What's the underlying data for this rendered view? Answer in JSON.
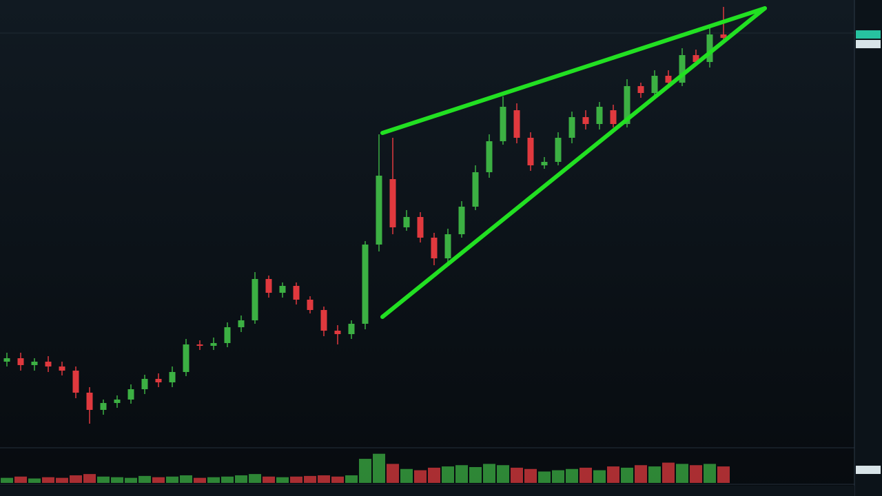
{
  "chart_data": {
    "type": "candlestick",
    "ylim": [
      0,
      650
    ],
    "up_color": "#3cb043",
    "down_color": "#e0393e",
    "open": [
      125,
      130,
      120,
      125,
      118,
      112,
      80,
      55,
      65,
      70,
      85,
      100,
      95,
      110,
      150,
      148,
      152,
      175,
      185,
      245,
      225,
      235,
      215,
      200,
      170,
      165,
      180,
      295,
      390,
      320,
      335,
      305,
      275,
      310,
      350,
      400,
      445,
      490,
      450,
      410,
      415,
      450,
      480,
      470,
      490,
      470,
      525,
      515,
      540,
      530,
      570,
      560,
      600
    ],
    "high": [
      138,
      138,
      130,
      133,
      125,
      118,
      88,
      70,
      76,
      92,
      106,
      108,
      118,
      158,
      156,
      160,
      182,
      192,
      255,
      250,
      240,
      240,
      220,
      205,
      178,
      185,
      300,
      455,
      450,
      345,
      342,
      312,
      318,
      358,
      410,
      455,
      510,
      500,
      458,
      422,
      458,
      488,
      490,
      502,
      498,
      535,
      530,
      548,
      548,
      580,
      578,
      612,
      640
    ],
    "low": [
      118,
      112,
      112,
      110,
      105,
      72,
      35,
      48,
      58,
      64,
      78,
      88,
      88,
      104,
      142,
      142,
      146,
      168,
      180,
      218,
      218,
      208,
      195,
      162,
      150,
      158,
      172,
      285,
      310,
      315,
      298,
      265,
      268,
      305,
      345,
      392,
      440,
      442,
      402,
      405,
      410,
      442,
      462,
      462,
      465,
      465,
      508,
      508,
      525,
      525,
      555,
      552,
      588
    ],
    "close": [
      130,
      120,
      125,
      118,
      112,
      80,
      55,
      65,
      70,
      85,
      100,
      95,
      110,
      150,
      148,
      152,
      175,
      185,
      245,
      225,
      235,
      215,
      200,
      170,
      165,
      180,
      295,
      395,
      320,
      335,
      305,
      275,
      310,
      350,
      400,
      445,
      495,
      450,
      410,
      415,
      450,
      480,
      470,
      495,
      470,
      525,
      515,
      540,
      530,
      570,
      560,
      600,
      595
    ],
    "volume_ylim": [
      0,
      50
    ],
    "volume": [
      8,
      10,
      7,
      9,
      8,
      12,
      14,
      10,
      9,
      8,
      11,
      9,
      10,
      12,
      8,
      9,
      10,
      12,
      14,
      10,
      9,
      10,
      11,
      12,
      10,
      12,
      38,
      46,
      30,
      22,
      20,
      24,
      26,
      28,
      25,
      30,
      28,
      24,
      22,
      18,
      20,
      22,
      24,
      20,
      26,
      24,
      28,
      26,
      32,
      30,
      28,
      30,
      26
    ]
  }
}
